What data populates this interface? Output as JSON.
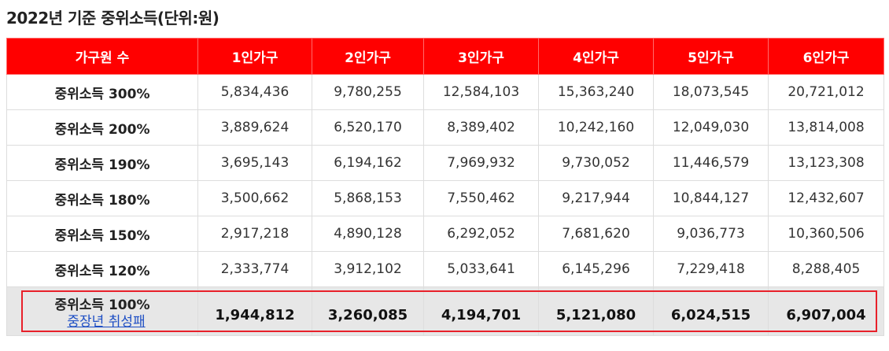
{
  "page": {
    "title": "2022년 기준 중위소득(단위:원)"
  },
  "table": {
    "headers": [
      "가구원 수",
      "1인가구",
      "2인가구",
      "3인가구",
      "4인가구",
      "5인가구",
      "6인가구"
    ],
    "rows": [
      {
        "label": "중위소득 300%",
        "values": [
          "5,834,436",
          "9,780,255",
          "12,584,103",
          "15,363,240",
          "18,073,545",
          "20,721,012"
        ]
      },
      {
        "label": "중위소득 200%",
        "values": [
          "3,889,624",
          "6,520,170",
          "8,389,402",
          "10,242,160",
          "12,049,030",
          "13,814,008"
        ]
      },
      {
        "label": "중위소득 190%",
        "values": [
          "3,695,143",
          "6,194,162",
          "7,969,932",
          "9,730,052",
          "11,446,579",
          "13,123,308"
        ]
      },
      {
        "label": "중위소득 180%",
        "values": [
          "3,500,662",
          "5,868,153",
          "7,550,462",
          "9,217,944",
          "10,844,127",
          "12,432,607"
        ]
      },
      {
        "label": "중위소득 150%",
        "values": [
          "2,917,218",
          "4,890,128",
          "6,292,052",
          "7,681,620",
          "9,036,773",
          "10,360,506"
        ]
      },
      {
        "label": "중위소득 120%",
        "values": [
          "2,333,774",
          "3,912,102",
          "5,033,641",
          "6,145,296",
          "7,229,418",
          "8,288,405"
        ]
      }
    ],
    "highlight_row": {
      "label": "중위소득 100%",
      "link_text": "중장년 취성패",
      "values": [
        "1,944,812",
        "3,260,085",
        "4,194,701",
        "5,121,080",
        "6,024,515",
        "6,907,004"
      ]
    }
  },
  "colors": {
    "header_background": "#ff0000",
    "highlight_row_background": "#e7e7e7",
    "highlight_border": "#e8202a",
    "link": "#1e4fc4"
  }
}
